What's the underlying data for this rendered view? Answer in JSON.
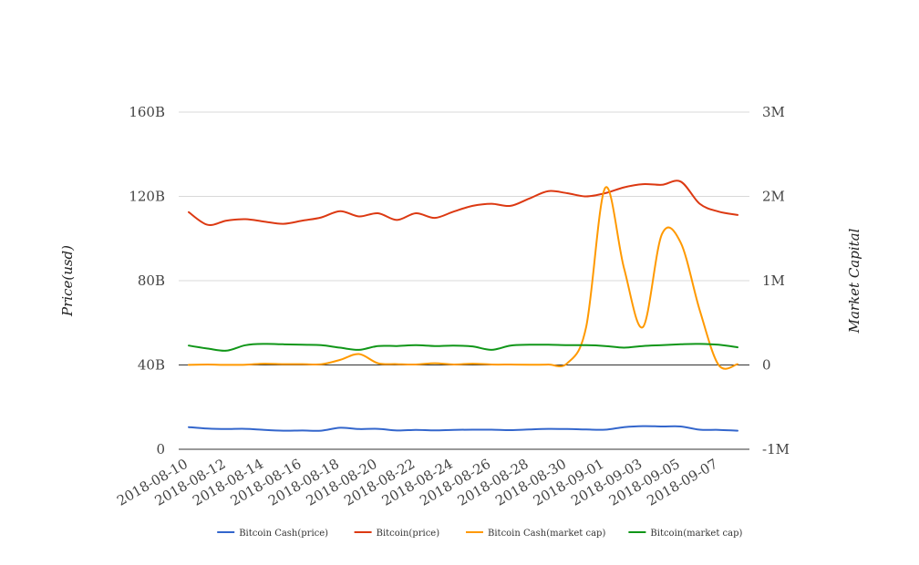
{
  "chart_data": {
    "type": "line",
    "title": "",
    "ylabel": "Price(usd)",
    "y2label": "Market Capital",
    "ylim": [
      0,
      160000000000
    ],
    "y2lim": [
      -1000000,
      3000000
    ],
    "yticks": [
      {
        "label": "0",
        "value": 0
      },
      {
        "label": "40B",
        "value": 40000000000
      },
      {
        "label": "80B",
        "value": 80000000000
      },
      {
        "label": "120B",
        "value": 120000000000
      },
      {
        "label": "160B",
        "value": 160000000000
      }
    ],
    "y2ticks": [
      {
        "label": "-1M",
        "value": -1000000
      },
      {
        "label": "0",
        "value": 0
      },
      {
        "label": "1M",
        "value": 1000000
      },
      {
        "label": "2M",
        "value": 2000000
      },
      {
        "label": "3M",
        "value": 3000000
      }
    ],
    "xtick_labels": [
      "2018-08-10",
      "2018-08-12",
      "2018-08-14",
      "2018-08-16",
      "2018-08-18",
      "2018-08-20",
      "2018-08-22",
      "2018-08-24",
      "2018-08-26",
      "2018-08-28",
      "2018-08-30",
      "2018-09-01",
      "2018-09-03",
      "2018-09-05",
      "2018-09-07"
    ],
    "x": [
      "2018-08-10",
      "2018-08-11",
      "2018-08-12",
      "2018-08-13",
      "2018-08-14",
      "2018-08-15",
      "2018-08-16",
      "2018-08-17",
      "2018-08-18",
      "2018-08-19",
      "2018-08-20",
      "2018-08-21",
      "2018-08-22",
      "2018-08-23",
      "2018-08-24",
      "2018-08-25",
      "2018-08-26",
      "2018-08-27",
      "2018-08-28",
      "2018-08-29",
      "2018-08-30",
      "2018-08-31",
      "2018-09-01",
      "2018-09-02",
      "2018-09-03",
      "2018-09-04",
      "2018-09-05",
      "2018-09-06",
      "2018-09-07",
      "2018-09-08"
    ],
    "legend_position": "bottom",
    "grid": true,
    "series": [
      {
        "name": "Bitcoin Cash(price)",
        "axis": "left",
        "color": "#3366cc",
        "values": [
          10500000000,
          9800000000,
          9600000000,
          9700000000,
          9200000000,
          8800000000,
          8900000000,
          8800000000,
          10200000000,
          9600000000,
          9700000000,
          8900000000,
          9200000000,
          9000000000,
          9200000000,
          9300000000,
          9300000000,
          9100000000,
          9400000000,
          9700000000,
          9600000000,
          9400000000,
          9300000000,
          10500000000,
          11000000000,
          10800000000,
          10800000000,
          9300000000,
          9200000000,
          8800000000
        ]
      },
      {
        "name": "Bitcoin(price)",
        "axis": "left",
        "color": "#dc3912",
        "values": [
          112500000000,
          106500000000,
          108500000000,
          109200000000,
          108000000000,
          107000000000,
          108500000000,
          110000000000,
          113000000000,
          110500000000,
          112000000000,
          108800000000,
          112000000000,
          109800000000,
          112800000000,
          115500000000,
          116500000000,
          115500000000,
          119000000000,
          122500000000,
          121500000000,
          120000000000,
          121500000000,
          124300000000,
          125800000000,
          125500000000,
          127000000000,
          116500000000,
          112800000000,
          111200000000
        ]
      },
      {
        "name": "Bitcoin Cash(market cap)",
        "axis": "right",
        "color": "#ff9900",
        "values": [
          1000,
          5000,
          1000,
          3000,
          15000,
          10000,
          10000,
          8000,
          60000,
          130000,
          20000,
          10000,
          5000,
          20000,
          5000,
          15000,
          5000,
          5000,
          3000,
          5000,
          20000,
          450000,
          2100000,
          1150000,
          450000,
          1550000,
          1450000,
          650000,
          0,
          10000
        ]
      },
      {
        "name": "Bitcoin(market cap)",
        "axis": "right",
        "color": "#109618",
        "values": [
          230000,
          195000,
          170000,
          235000,
          250000,
          245000,
          240000,
          235000,
          205000,
          180000,
          225000,
          225000,
          235000,
          225000,
          230000,
          220000,
          180000,
          230000,
          240000,
          240000,
          235000,
          235000,
          225000,
          205000,
          225000,
          235000,
          245000,
          250000,
          240000,
          210000
        ]
      }
    ]
  }
}
